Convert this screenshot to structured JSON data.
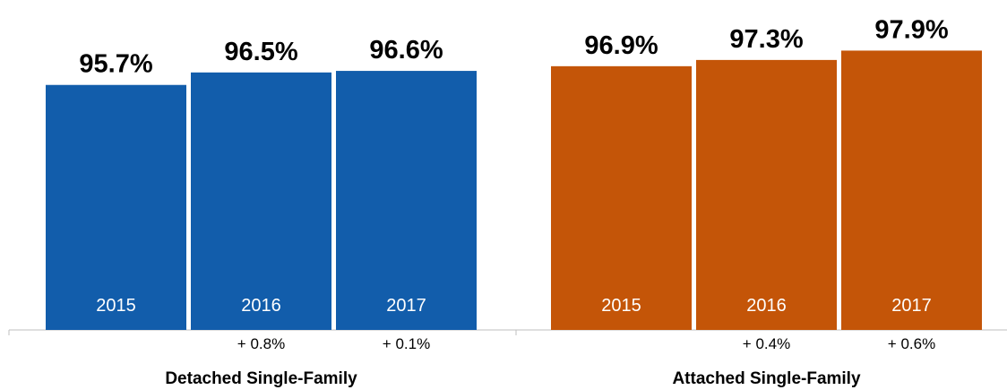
{
  "chart_data": {
    "type": "bar",
    "groups": [
      {
        "name": "Detached Single-Family",
        "color": "#125dab",
        "bars": [
          {
            "year": "2015",
            "value": 95.7,
            "value_label": "95.7%",
            "change": ""
          },
          {
            "year": "2016",
            "value": 96.5,
            "value_label": "96.5%",
            "change": "+ 0.8%"
          },
          {
            "year": "2017",
            "value": 96.6,
            "value_label": "96.6%",
            "change": "+ 0.1%"
          }
        ]
      },
      {
        "name": "Attached Single-Family",
        "color": "#c45508",
        "bars": [
          {
            "year": "2015",
            "value": 96.9,
            "value_label": "96.9%",
            "change": ""
          },
          {
            "year": "2016",
            "value": 97.3,
            "value_label": "97.3%",
            "change": "+ 0.4%"
          },
          {
            "year": "2017",
            "value": 97.9,
            "value_label": "97.9%",
            "change": "+ 0.6%"
          }
        ]
      }
    ],
    "ylim": [
      0,
      100
    ],
    "grid": false,
    "legend": "none"
  }
}
